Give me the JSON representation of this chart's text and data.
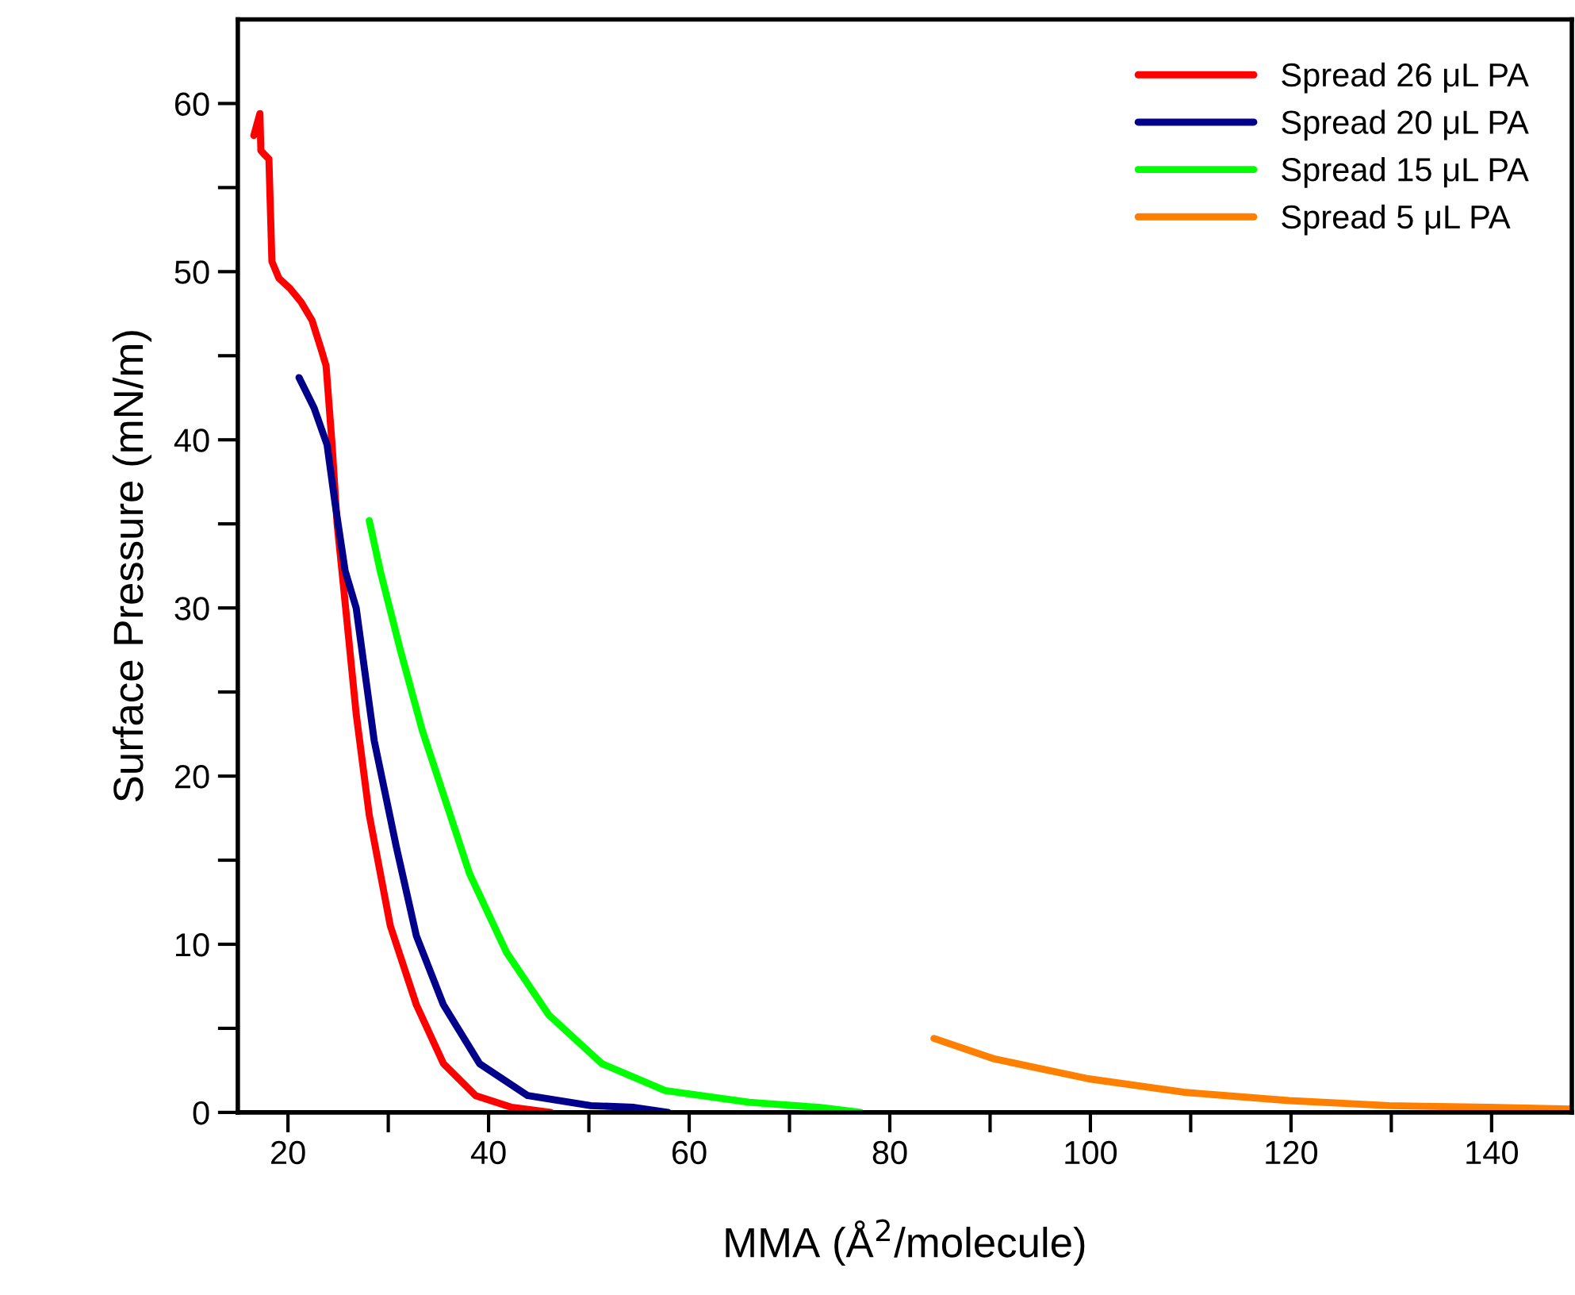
{
  "chart_data": {
    "type": "line",
    "xlabel": "MMA (Å$^{2}$/molecule)",
    "ylabel": "Surface Pressure (mN/m)",
    "xlim": [
      15,
      148
    ],
    "ylim": [
      0,
      65
    ],
    "xticks": [
      20,
      {
        "value": 30,
        "label": null
      },
      40,
      {
        "value": 50,
        "label": null
      },
      60,
      {
        "value": 70,
        "label": null
      },
      80,
      {
        "value": 90,
        "label": null
      },
      100,
      {
        "value": 110,
        "label": null
      },
      120,
      {
        "value": 130,
        "label": null
      },
      140
    ],
    "yticks": [
      0,
      {
        "value": 5,
        "label": null
      },
      10,
      {
        "value": 15,
        "label": null
      },
      20,
      {
        "value": 25,
        "label": null
      },
      30,
      {
        "value": 35,
        "label": null
      },
      40,
      {
        "value": 45,
        "label": null
      },
      50,
      {
        "value": 55,
        "label": null
      },
      60
    ],
    "legend": "top right",
    "grid": false,
    "marker": "none",
    "line_style": "solid",
    "series": [
      {
        "name": "Spread 26 μL PA",
        "color": "#ff0000",
        "x": [
          16.6,
          17.2,
          17.3,
          17.6,
          18.1,
          18.4,
          19.1,
          20.2,
          21.3,
          22.4,
          23.3,
          23.8,
          24.4,
          24.9,
          25.5,
          26.8,
          28.1,
          30.2,
          32.8,
          35.5,
          38.7,
          42.3,
          46.2
        ],
        "values": [
          58.1,
          59.4,
          57.2,
          57.0,
          56.7,
          50.6,
          49.6,
          49.0,
          48.2,
          47.1,
          45.4,
          44.4,
          39.7,
          35.0,
          31.5,
          23.7,
          17.7,
          11.1,
          6.4,
          2.9,
          1.0,
          0.3,
          0
        ]
      },
      {
        "name": "Spread 20 μL PA",
        "color": "#00008b",
        "x": [
          21.1,
          22.6,
          23.9,
          24.7,
          25.7,
          26.8,
          28.6,
          30.8,
          32.8,
          35.5,
          39.1,
          43.9,
          50.2,
          54.5,
          57.9
        ],
        "values": [
          43.7,
          41.9,
          39.7,
          36.2,
          32.2,
          30.0,
          22.1,
          15.8,
          10.5,
          6.4,
          2.9,
          1.0,
          0.4,
          0.3,
          0
        ]
      },
      {
        "name": "Spread 15 μL PA",
        "color": "#00ff00",
        "x": [
          28.1,
          29.2,
          31.2,
          33.4,
          36.0,
          38.1,
          41.8,
          46.0,
          51.3,
          57.6,
          66.0,
          72.9,
          77.1
        ],
        "values": [
          35.2,
          32.2,
          27.5,
          22.7,
          18.0,
          14.2,
          9.5,
          5.8,
          2.9,
          1.3,
          0.6,
          0.3,
          0
        ]
      },
      {
        "name": "Spread 5 μL PA",
        "color": "#ff8000",
        "x": [
          84.4,
          90.3,
          99.8,
          109.3,
          119.8,
          129.8,
          139.8,
          148.0
        ],
        "values": [
          4.4,
          3.2,
          2.0,
          1.2,
          0.7,
          0.4,
          0.3,
          0.2
        ]
      }
    ]
  }
}
